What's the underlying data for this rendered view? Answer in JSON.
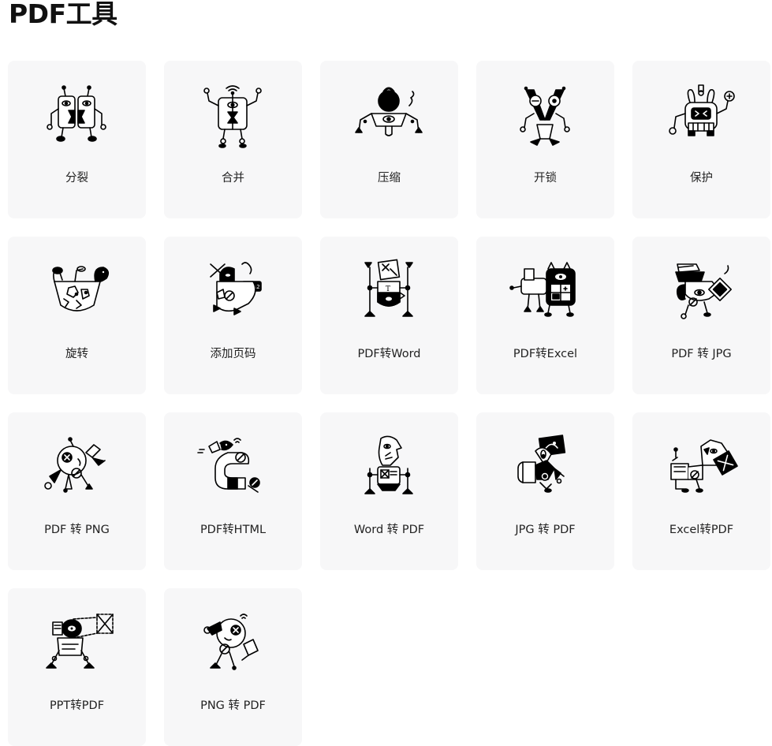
{
  "page": {
    "title": "PDF工具"
  },
  "tools": [
    {
      "label": "分裂",
      "icon": "split-robot-icon"
    },
    {
      "label": "合并",
      "icon": "merge-robot-icon"
    },
    {
      "label": "压缩",
      "icon": "compress-robot-icon"
    },
    {
      "label": "开锁",
      "icon": "unlock-robot-icon"
    },
    {
      "label": "保护",
      "icon": "protect-robot-icon"
    },
    {
      "label": "旋转",
      "icon": "rotate-robot-icon"
    },
    {
      "label": "添加页码",
      "icon": "page-number-robot-icon"
    },
    {
      "label": "PDF转Word",
      "icon": "pdf-to-word-robot-icon"
    },
    {
      "label": "PDF转Excel",
      "icon": "pdf-to-excel-robot-icon"
    },
    {
      "label": "PDF 转 JPG",
      "icon": "pdf-to-jpg-robot-icon"
    },
    {
      "label": "PDF 转 PNG",
      "icon": "pdf-to-png-robot-icon"
    },
    {
      "label": "PDF转HTML",
      "icon": "pdf-to-html-robot-icon"
    },
    {
      "label": "Word 转 PDF",
      "icon": "word-to-pdf-robot-icon"
    },
    {
      "label": "JPG 转 PDF",
      "icon": "jpg-to-pdf-robot-icon"
    },
    {
      "label": "Excel转PDF",
      "icon": "excel-to-pdf-robot-icon"
    },
    {
      "label": "PPT转PDF",
      "icon": "ppt-to-pdf-robot-icon"
    },
    {
      "label": "PNG 转 PDF",
      "icon": "png-to-pdf-robot-icon"
    }
  ]
}
